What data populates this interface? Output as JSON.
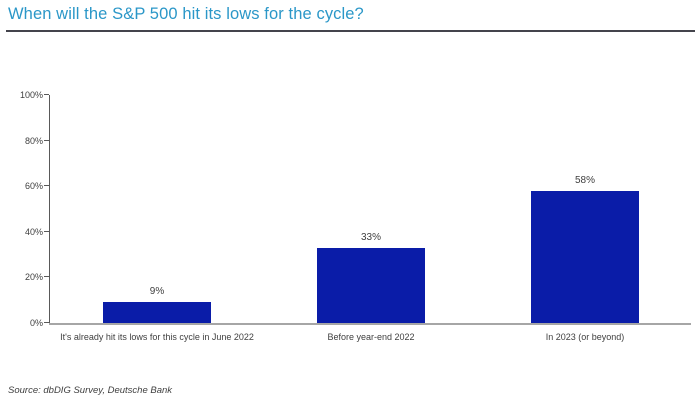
{
  "title": "When will the S&P 500 hit its lows for the cycle?",
  "source": "Source: dbDIG Survey, Deutsche Bank",
  "colors": {
    "title": "#2b97c8",
    "bar": "#0a1ca8",
    "divider": "#44444c",
    "axis": "#595959",
    "baseline": "#a6a6a6",
    "label": "#404040"
  },
  "chart_data": {
    "type": "bar",
    "title": "When will the S&P 500 hit its lows for the cycle?",
    "categories": [
      "It's already hit its lows for this cycle in June 2022",
      "Before year-end 2022",
      "In 2023 (or beyond)"
    ],
    "values": [
      9,
      33,
      58
    ],
    "value_labels": [
      "9%",
      "33%",
      "58%"
    ],
    "xlabel": "",
    "ylabel": "",
    "ylim": [
      0,
      100
    ],
    "yticks": [
      0,
      20,
      40,
      60,
      80,
      100
    ],
    "ytick_labels": [
      "0%",
      "20%",
      "40%",
      "60%",
      "80%",
      "100%"
    ],
    "grid": false,
    "legend_position": "none",
    "bar_color": "#0a1ca8",
    "source": "Source: dbDIG Survey, Deutsche Bank"
  }
}
